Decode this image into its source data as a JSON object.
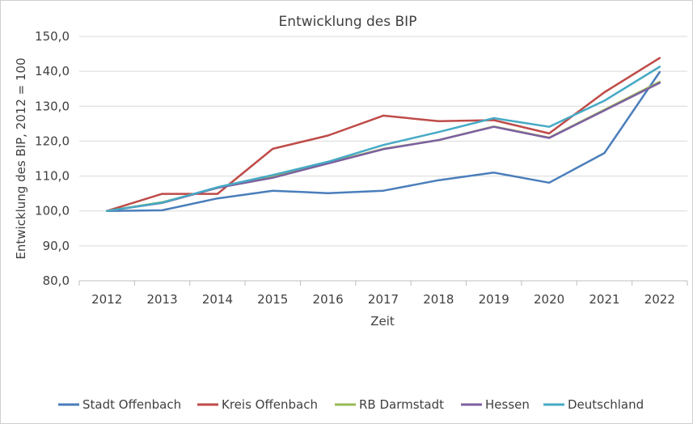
{
  "chart_data": {
    "type": "line",
    "title": "Entwicklung  des BIP",
    "xlabel": "Zeit",
    "ylabel": "Entwicklung des BIP, 2012 = 100",
    "ylim": [
      80,
      150
    ],
    "yticks": [
      "80,0",
      "90,0",
      "100,0",
      "110,0",
      "120,0",
      "130,0",
      "140,0",
      "150,0"
    ],
    "categories": [
      "2012",
      "2013",
      "2014",
      "2015",
      "2016",
      "2017",
      "2018",
      "2019",
      "2020",
      "2021",
      "2022"
    ],
    "grid": true,
    "legend_position": "bottom",
    "series": [
      {
        "name": "Stadt Offenbach",
        "color": "#4a7ebb",
        "values": [
          100.0,
          100.2,
          103.6,
          105.8,
          105.1,
          105.8,
          108.8,
          111.0,
          108.1,
          116.6,
          139.8
        ]
      },
      {
        "name": "Kreis Offenbach",
        "color": "#be4b48",
        "values": [
          100.0,
          104.9,
          104.9,
          117.8,
          121.6,
          127.3,
          125.7,
          126.0,
          122.2,
          134.0,
          143.8
        ]
      },
      {
        "name": "RB Darmstadt",
        "color": "#98b954",
        "values": [
          100.0,
          102.5,
          106.6,
          109.8,
          113.8,
          117.8,
          120.3,
          124.2,
          121.0,
          129.0,
          137.0
        ]
      },
      {
        "name": "Hessen",
        "color": "#7d60a0",
        "values": [
          100.0,
          102.3,
          106.6,
          109.5,
          113.6,
          117.7,
          120.3,
          124.1,
          120.9,
          128.8,
          136.7
        ]
      },
      {
        "name": "Deutschland",
        "color": "#46aac5",
        "values": [
          100.0,
          102.4,
          106.8,
          110.3,
          114.1,
          118.9,
          122.6,
          126.6,
          124.1,
          131.6,
          141.3
        ]
      }
    ]
  }
}
